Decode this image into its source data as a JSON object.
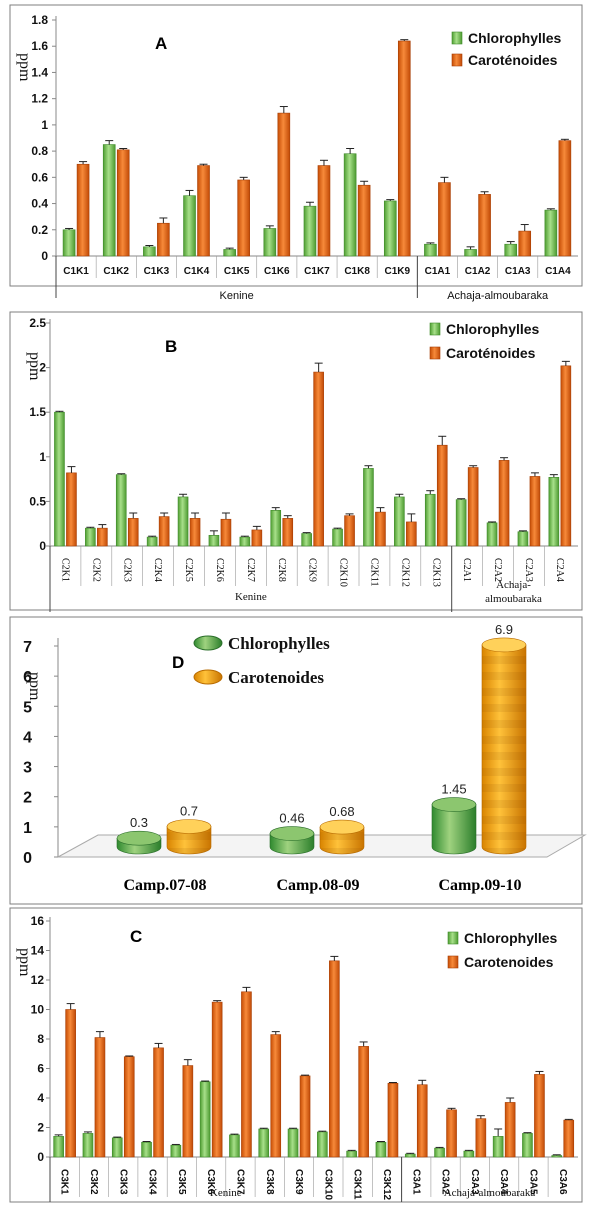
{
  "colors": {
    "chlorophyll": "#6cc04a",
    "chlorophyll_dark": "#3f8a2a",
    "carotenoid": "#e8620e",
    "carotenoid_dark": "#a83f05",
    "frame": "#7f7f7f"
  },
  "chart_data": [
    {
      "id": "A",
      "type": "bar",
      "title": "A",
      "ylabel": "ppm",
      "ylim": [
        0,
        1.8
      ],
      "yticks": [
        "0",
        "0.2",
        "0.4",
        "0.6",
        "0.8",
        "1",
        "1.2",
        "1.4",
        "1.6",
        "1.8"
      ],
      "legend_position": "top-right",
      "categories": [
        "C1K1",
        "C1K2",
        "C1K3",
        "C1K4",
        "C1K5",
        "C1K6",
        "C1K7",
        "C1K8",
        "C1K9",
        "C1A1",
        "C1A2",
        "C1A3",
        "C1A4"
      ],
      "groups": [
        {
          "label": "Kenine",
          "count": 9
        },
        {
          "label": "Achaja-almoubaraka",
          "count": 4
        }
      ],
      "series": [
        {
          "name": "Chlorophylles",
          "values": [
            0.2,
            0.85,
            0.07,
            0.46,
            0.05,
            0.21,
            0.38,
            0.78,
            0.42,
            0.09,
            0.05,
            0.09,
            0.35
          ],
          "errors": [
            0.01,
            0.03,
            0.01,
            0.04,
            0.01,
            0.02,
            0.03,
            0.04,
            0.01,
            0.01,
            0.02,
            0.02,
            0.01
          ]
        },
        {
          "name": "Caroténoides",
          "values": [
            0.7,
            0.81,
            0.25,
            0.69,
            0.58,
            1.09,
            0.69,
            0.54,
            1.64,
            0.56,
            0.47,
            0.19,
            0.88
          ],
          "errors": [
            0.02,
            0.01,
            0.04,
            0.01,
            0.02,
            0.05,
            0.04,
            0.03,
            0.01,
            0.04,
            0.02,
            0.05,
            0.01
          ]
        }
      ]
    },
    {
      "id": "B",
      "type": "bar",
      "title": "B",
      "ylabel": "ppm",
      "ylim": [
        0,
        2.5
      ],
      "yticks": [
        "0",
        "0.5",
        "1",
        "1.5",
        "2",
        "2.5"
      ],
      "legend_position": "top-right",
      "categories": [
        "C2K1",
        "C2K2",
        "C2K3",
        "C2K4",
        "C2K5",
        "C2K6",
        "C2K7",
        "C2K8",
        "C2K9",
        "C2K10",
        "C2K11",
        "C2K12",
        "C2K13",
        "C2A1",
        "C2A2",
        "C2A3",
        "C2A4"
      ],
      "groups": [
        {
          "label": "Kenine",
          "count": 13
        },
        {
          "label": "Achaja-",
          "label2": "almoubaraka",
          "count": 4
        }
      ],
      "series": [
        {
          "name": "Chlorophylles",
          "values": [
            1.5,
            0.2,
            0.8,
            0.1,
            0.55,
            0.12,
            0.1,
            0.4,
            0.14,
            0.19,
            0.87,
            0.55,
            0.58,
            0.52,
            0.26,
            0.16,
            0.77
          ],
          "errors": [
            0.01,
            0.01,
            0.01,
            0.01,
            0.03,
            0.05,
            0.01,
            0.03,
            0.01,
            0.01,
            0.03,
            0.03,
            0.04,
            0.01,
            0.01,
            0.01,
            0.03
          ]
        },
        {
          "name": "Caroténoides",
          "values": [
            0.82,
            0.2,
            0.31,
            0.33,
            0.31,
            0.3,
            0.18,
            0.31,
            1.95,
            0.34,
            0.38,
            0.27,
            1.13,
            0.88,
            0.96,
            0.78,
            2.02
          ]
        }
      ],
      "carotenoid_errors": [
        0.07,
        0.04,
        0.06,
        0.04,
        0.06,
        0.07,
        0.04,
        0.03,
        0.1,
        0.02,
        0.05,
        0.09,
        0.1,
        0.02,
        0.03,
        0.04,
        0.05
      ]
    },
    {
      "id": "D",
      "type": "bar",
      "title": "D",
      "ylabel": "ppm",
      "ylim": [
        0,
        7
      ],
      "yticks": [
        "0",
        "1",
        "2",
        "3",
        "4",
        "5",
        "6",
        "7"
      ],
      "legend_position": "top-center",
      "categories": [
        "Camp.07-08",
        "Camp.08-09",
        "Camp.09-10"
      ],
      "series": [
        {
          "name": "Chlorophylles",
          "values": [
            0.3,
            0.46,
            1.45
          ],
          "labels": [
            "0.3",
            "0.46",
            "1.45"
          ]
        },
        {
          "name": "Carotenoides",
          "values": [
            0.7,
            0.68,
            6.9
          ],
          "labels": [
            "0.7",
            "0.68",
            "6.9"
          ]
        }
      ]
    },
    {
      "id": "C",
      "type": "bar",
      "title": "C",
      "ylabel": "ppm",
      "ylim": [
        0,
        16
      ],
      "yticks": [
        "0",
        "2",
        "4",
        "6",
        "8",
        "10",
        "12",
        "14",
        "16"
      ],
      "legend_position": "top-right",
      "categories": [
        "C3K1",
        "C3K2",
        "C3K3",
        "C3K4",
        "C3K5",
        "C3K6",
        "C3K7",
        "C3K8",
        "C3K9",
        "C3K10",
        "C3K11",
        "C3K12",
        "C3A1",
        "C3A2",
        "C3A3",
        "C3A4",
        "C3A5",
        "C3A6"
      ],
      "groups": [
        {
          "label": "Kenine",
          "count": 12
        },
        {
          "label": "Achaja-almoubaraka",
          "count": 6
        }
      ],
      "series": [
        {
          "name": "Chlorophylles",
          "values": [
            1.4,
            1.6,
            1.3,
            1.0,
            0.8,
            5.1,
            1.5,
            1.9,
            1.9,
            1.7,
            0.4,
            1.0,
            0.2,
            0.6,
            0.4,
            1.4,
            1.6,
            0.1
          ],
          "errors": [
            0.1,
            0.1,
            0.05,
            0.05,
            0.05,
            0.05,
            0.05,
            0.05,
            0.05,
            0.05,
            0.05,
            0.05,
            0.05,
            0.05,
            0.05,
            0.5,
            0.05,
            0.05
          ]
        },
        {
          "name": "Carotenoides",
          "values": [
            10.0,
            8.1,
            6.8,
            7.4,
            6.2,
            10.5,
            11.2,
            8.3,
            5.5,
            13.3,
            7.5,
            5.0,
            4.9,
            3.2,
            2.6,
            3.7,
            5.6,
            2.5
          ],
          "errors": [
            0.4,
            0.4,
            0.05,
            0.3,
            0.4,
            0.1,
            0.3,
            0.2,
            0.05,
            0.3,
            0.3,
            0.05,
            0.3,
            0.1,
            0.2,
            0.3,
            0.2,
            0.05
          ]
        }
      ]
    }
  ]
}
